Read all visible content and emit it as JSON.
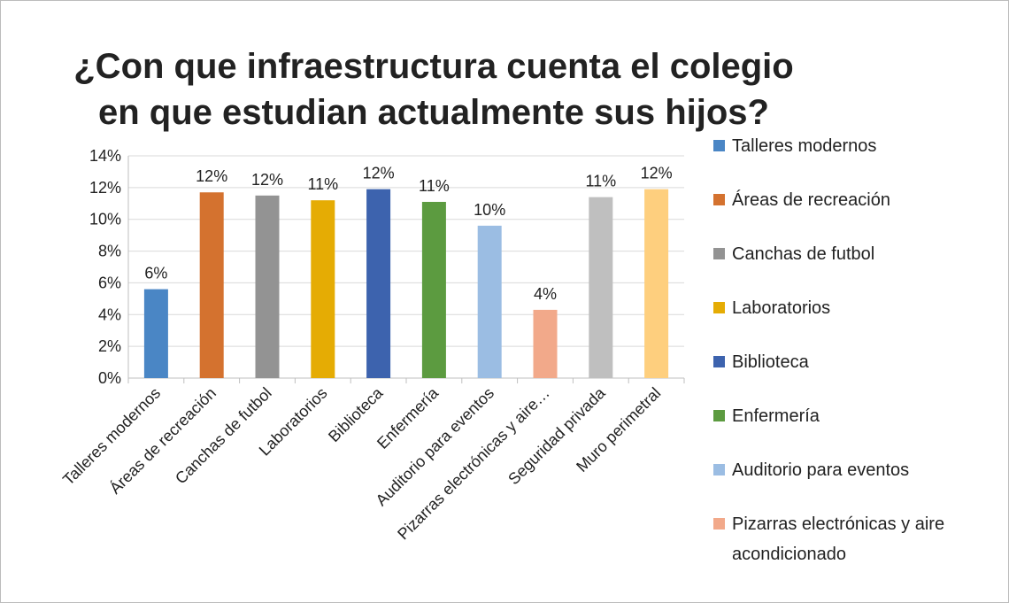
{
  "chart_data": {
    "type": "bar",
    "title": [
      "¿Con que infraestructura cuenta el colegio",
      "en que estudian actualmente sus hijos?"
    ],
    "categories": [
      "Talleres modernos",
      "Áreas de recreación",
      "Canchas de futbol",
      "Laboratorios",
      "Biblioteca",
      "Enfermería",
      "Auditorio para eventos",
      "Pizarras electrónicas y aire…",
      "Seguridad privada",
      "Muro perimetral"
    ],
    "values": [
      5.6,
      11.7,
      11.5,
      11.2,
      11.9,
      11.1,
      9.6,
      4.3,
      11.4,
      11.9
    ],
    "value_labels": [
      "6%",
      "12%",
      "12%",
      "11%",
      "12%",
      "11%",
      "10%",
      "4%",
      "11%",
      "12%"
    ],
    "colors": [
      "#4a86c5",
      "#d4722f",
      "#939393",
      "#e5ac04",
      "#3d63ae",
      "#5c9b40",
      "#9bbde3",
      "#f2a98a",
      "#bfbfbf",
      "#fecf7e"
    ],
    "legend": [
      "Talleres modernos",
      "Áreas de recreación",
      "Canchas de futbol",
      "Laboratorios",
      "Biblioteca",
      "Enfermería",
      "Auditorio para eventos",
      "Pizarras electrónicas y aire acondicionado"
    ],
    "ylim": [
      0,
      14
    ],
    "yticks": [
      {
        "value": 0,
        "label": "0%"
      },
      {
        "value": 2,
        "label": "2%"
      },
      {
        "value": 4,
        "label": "4%"
      },
      {
        "value": 6,
        "label": "6%"
      },
      {
        "value": 8,
        "label": "8%"
      },
      {
        "value": 10,
        "label": "10%"
      },
      {
        "value": 12,
        "label": "12%"
      },
      {
        "value": 14,
        "label": "14%"
      }
    ],
    "grid": true
  }
}
